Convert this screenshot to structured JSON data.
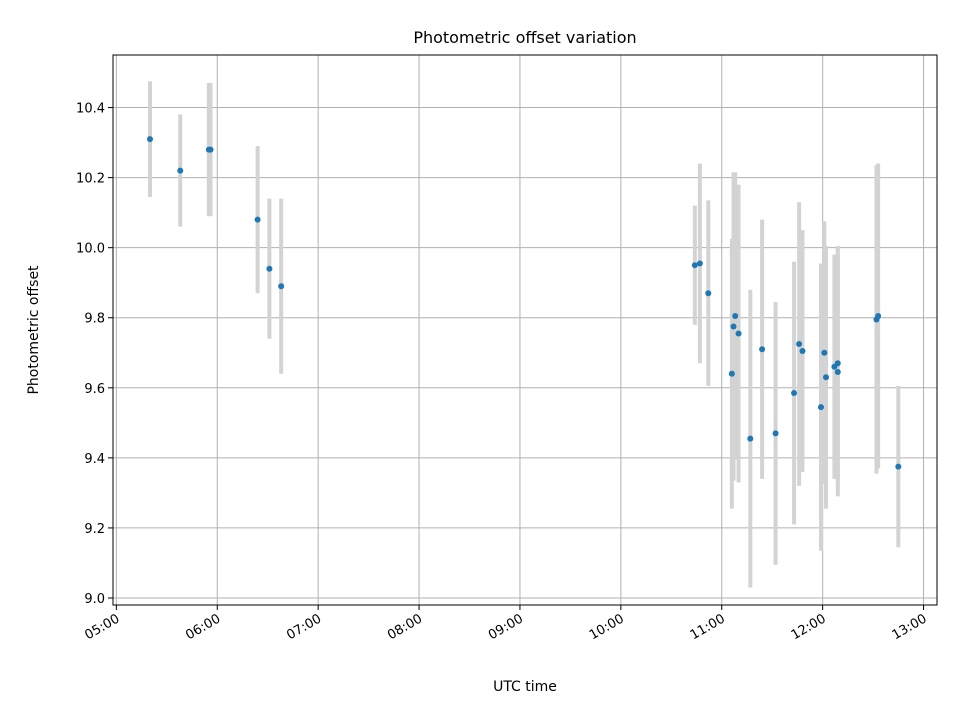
{
  "chart_data": {
    "type": "scatter",
    "title": "Photometric offset variation",
    "xlabel": "UTC time",
    "ylabel": "Photometric offset",
    "x_is_time": true,
    "xlim": [
      "04:58",
      "13:08"
    ],
    "ylim": [
      8.98,
      10.55
    ],
    "xticks": [
      "05:00",
      "06:00",
      "07:00",
      "08:00",
      "09:00",
      "10:00",
      "11:00",
      "12:00",
      "13:00"
    ],
    "yticks": [
      9.0,
      9.2,
      9.4,
      9.6,
      9.8,
      10.0,
      10.2,
      10.4
    ],
    "ytick_labels": [
      "9.0",
      "9.2",
      "9.4",
      "9.6",
      "9.8",
      "10.0",
      "10.2",
      "10.4"
    ],
    "grid": true,
    "point_color": "#1f77b4",
    "errorbar_color": "#d3d3d3",
    "points": [
      {
        "x": "05:20",
        "y": 10.31,
        "err": 0.165
      },
      {
        "x": "05:38",
        "y": 10.22,
        "err": 0.16
      },
      {
        "x": "05:55",
        "y": 10.28,
        "err": 0.19
      },
      {
        "x": "05:56",
        "y": 10.28,
        "err": 0.19
      },
      {
        "x": "06:24",
        "y": 10.08,
        "err": 0.21
      },
      {
        "x": "06:31",
        "y": 9.94,
        "err": 0.2
      },
      {
        "x": "06:38",
        "y": 9.89,
        "err": 0.25
      },
      {
        "x": "10:44",
        "y": 9.95,
        "err": 0.17
      },
      {
        "x": "10:47",
        "y": 9.955,
        "err": 0.285
      },
      {
        "x": "10:52",
        "y": 9.87,
        "err": 0.265
      },
      {
        "x": "11:06",
        "y": 9.64,
        "err": 0.385
      },
      {
        "x": "11:07",
        "y": 9.775,
        "err": 0.44
      },
      {
        "x": "11:08",
        "y": 9.805,
        "err": 0.41
      },
      {
        "x": "11:10",
        "y": 9.755,
        "err": 0.425
      },
      {
        "x": "11:17",
        "y": 9.455,
        "err": 0.425
      },
      {
        "x": "11:24",
        "y": 9.71,
        "err": 0.37
      },
      {
        "x": "11:32",
        "y": 9.47,
        "err": 0.375
      },
      {
        "x": "11:43",
        "y": 9.585,
        "err": 0.375
      },
      {
        "x": "11:46",
        "y": 9.725,
        "err": 0.405
      },
      {
        "x": "11:48",
        "y": 9.705,
        "err": 0.345
      },
      {
        "x": "11:59",
        "y": 9.545,
        "err": 0.41
      },
      {
        "x": "12:01",
        "y": 9.7,
        "err": 0.375
      },
      {
        "x": "12:02",
        "y": 9.63,
        "err": 0.375
      },
      {
        "x": "12:07",
        "y": 9.66,
        "err": 0.32
      },
      {
        "x": "12:09",
        "y": 9.645,
        "err": 0.355
      },
      {
        "x": "12:09",
        "y": 9.67,
        "err": 0.335
      },
      {
        "x": "12:32",
        "y": 9.795,
        "err": 0.44
      },
      {
        "x": "12:33",
        "y": 9.805,
        "err": 0.435
      },
      {
        "x": "12:45",
        "y": 9.375,
        "err": 0.23
      }
    ]
  }
}
